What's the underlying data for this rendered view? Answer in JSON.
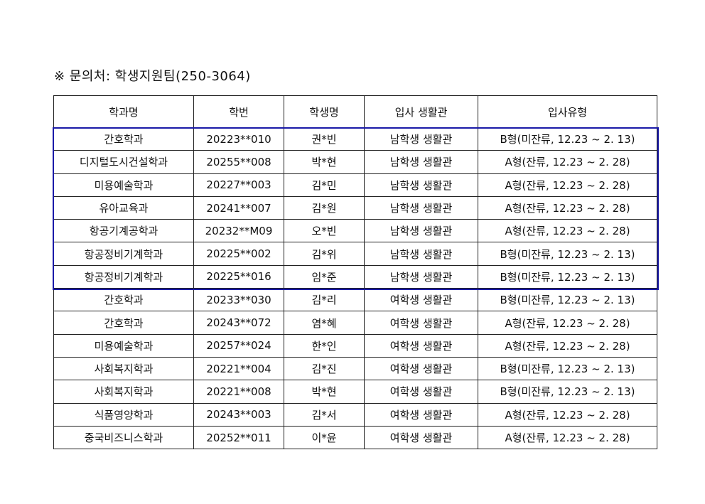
{
  "title": "※ 문의처: 학생지원팀(250-3064)",
  "table": {
    "headers": [
      "학과명",
      "학번",
      "학생명",
      "입사 생활관",
      "입사유형"
    ],
    "rows": [
      [
        "간호학과",
        "20223**010",
        "권*빈",
        "남학생 생활관",
        "B형(미잔류, 12.23 ~ 2. 13)"
      ],
      [
        "디지털도시건설학과",
        "20255**008",
        "박*현",
        "남학생 생활관",
        "A형(잔류, 12.23 ~ 2. 28)"
      ],
      [
        "미용예술학과",
        "20227**003",
        "김*민",
        "남학생 생활관",
        "A형(잔류, 12.23 ~ 2. 28)"
      ],
      [
        "유아교육과",
        "20241**007",
        "김*원",
        "남학생 생활관",
        "A형(잔류, 12.23 ~ 2. 28)"
      ],
      [
        "항공기계공학과",
        "20232**M09",
        "오*빈",
        "남학생 생활관",
        "A형(잔류, 12.23 ~ 2. 28)"
      ],
      [
        "항공정비기계학과",
        "20225**002",
        "김*위",
        "남학생 생활관",
        "B형(미잔류, 12.23 ~ 2. 13)"
      ],
      [
        "항공정비기계학과",
        "20225**016",
        "임*준",
        "남학생 생활관",
        "B형(미잔류, 12.23 ~ 2. 13)"
      ],
      [
        "간호학과",
        "20233**030",
        "김*리",
        "여학생 생활관",
        "B형(미잔류, 12.23 ~ 2. 13)"
      ],
      [
        "간호학과",
        "20243**072",
        "염*혜",
        "여학생 생활관",
        "A형(잔류, 12.23 ~ 2. 28)"
      ],
      [
        "미용예술학과",
        "20257**024",
        "한*인",
        "여학생 생활관",
        "A형(잔류, 12.23 ~ 2. 28)"
      ],
      [
        "사회복지학과",
        "20221**004",
        "김*진",
        "여학생 생활관",
        "B형(미잔류, 12.23 ~ 2. 13)"
      ],
      [
        "사회복지학과",
        "20221**008",
        "박*현",
        "여학생 생활관",
        "B형(미잔류, 12.23 ~ 2. 13)"
      ],
      [
        "식품영양학과",
        "20243**003",
        "김*서",
        "여학생 생활관",
        "A형(잔류, 12.23 ~ 2. 28)"
      ],
      [
        "중국비즈니스학과",
        "20252**011",
        "이*윤",
        "여학생 생활관",
        "A형(잔류, 12.23 ~ 2. 28)"
      ]
    ]
  },
  "colors": {
    "highlight_border": "#1a1aa8"
  }
}
